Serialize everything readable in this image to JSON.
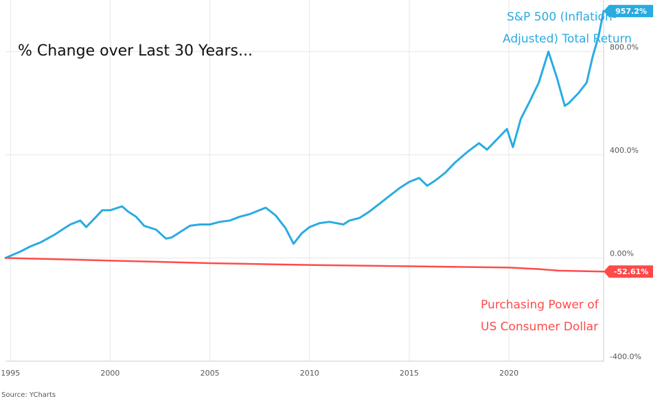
{
  "chart_data": {
    "type": "line",
    "title": "% Change over Last 30 Years...",
    "xlabel": "",
    "ylabel": "",
    "x_range": [
      1994.75,
      2024.75
    ],
    "ylim": [
      -400,
      1000
    ],
    "x_ticks": [
      1995,
      2000,
      2005,
      2010,
      2015,
      2020
    ],
    "x_tick_labels": [
      "1995",
      "2000",
      "2005",
      "2010",
      "2015",
      "2020"
    ],
    "y_ticks": [
      -400,
      0,
      400,
      800
    ],
    "y_tick_labels": [
      "-400.0%",
      "0.00%",
      "400.0%",
      "800.0%"
    ],
    "grid": true,
    "series": [
      {
        "name": "S&P 500 (Inflation-Adjusted) Total Return",
        "color": "#29abe2",
        "end_label": "957.2%",
        "x": [
          1994.75,
          1995.5,
          1996,
          1996.5,
          1997.2,
          1997.6,
          1998.0,
          1998.5,
          1998.8,
          1999.3,
          1999.6,
          2000.0,
          2000.6,
          2000.9,
          2001.3,
          2001.7,
          2002.3,
          2002.8,
          2003.1,
          2003.5,
          2004.0,
          2004.5,
          2005.0,
          2005.5,
          2006.0,
          2006.5,
          2007.0,
          2007.8,
          2008.3,
          2008.8,
          2009.2,
          2009.6,
          2010.0,
          2010.5,
          2011.0,
          2011.7,
          2012.0,
          2012.5,
          2013.0,
          2013.5,
          2014.0,
          2014.5,
          2015.0,
          2015.5,
          2015.9,
          2016.3,
          2016.8,
          2017.3,
          2017.9,
          2018.5,
          2018.9,
          2019.4,
          2019.9,
          2020.2,
          2020.6,
          2021.0,
          2021.5,
          2021.98,
          2022.4,
          2022.8,
          2023.0,
          2023.5,
          2023.9,
          2024.2,
          2024.5,
          2024.75
        ],
        "values": [
          0,
          25,
          45,
          60,
          90,
          110,
          130,
          145,
          120,
          160,
          185,
          185,
          200,
          180,
          160,
          125,
          110,
          75,
          80,
          100,
          125,
          130,
          130,
          140,
          145,
          160,
          170,
          195,
          165,
          115,
          55,
          95,
          120,
          135,
          140,
          130,
          145,
          155,
          180,
          210,
          240,
          270,
          295,
          310,
          280,
          300,
          330,
          370,
          410,
          445,
          420,
          460,
          500,
          430,
          540,
          600,
          680,
          800,
          700,
          590,
          600,
          640,
          680,
          780,
          860,
          957.2
        ]
      },
      {
        "name": "Purchasing Power of US Consumer Dollar",
        "color": "#ff4a4a",
        "end_label": "-52.61%",
        "x": [
          1994.75,
          2000,
          2005,
          2010,
          2015,
          2020,
          2021.5,
          2022.5,
          2024.75
        ],
        "values": [
          0,
          -10,
          -20,
          -27,
          -32,
          -37,
          -43,
          -49,
          -52.61
        ]
      }
    ],
    "annotations": [
      "S&P 500 (Inflation-",
      "Adjusted) Total Return",
      "Purchasing Power of",
      "US Consumer Dollar"
    ],
    "source": "Source: YCharts"
  }
}
